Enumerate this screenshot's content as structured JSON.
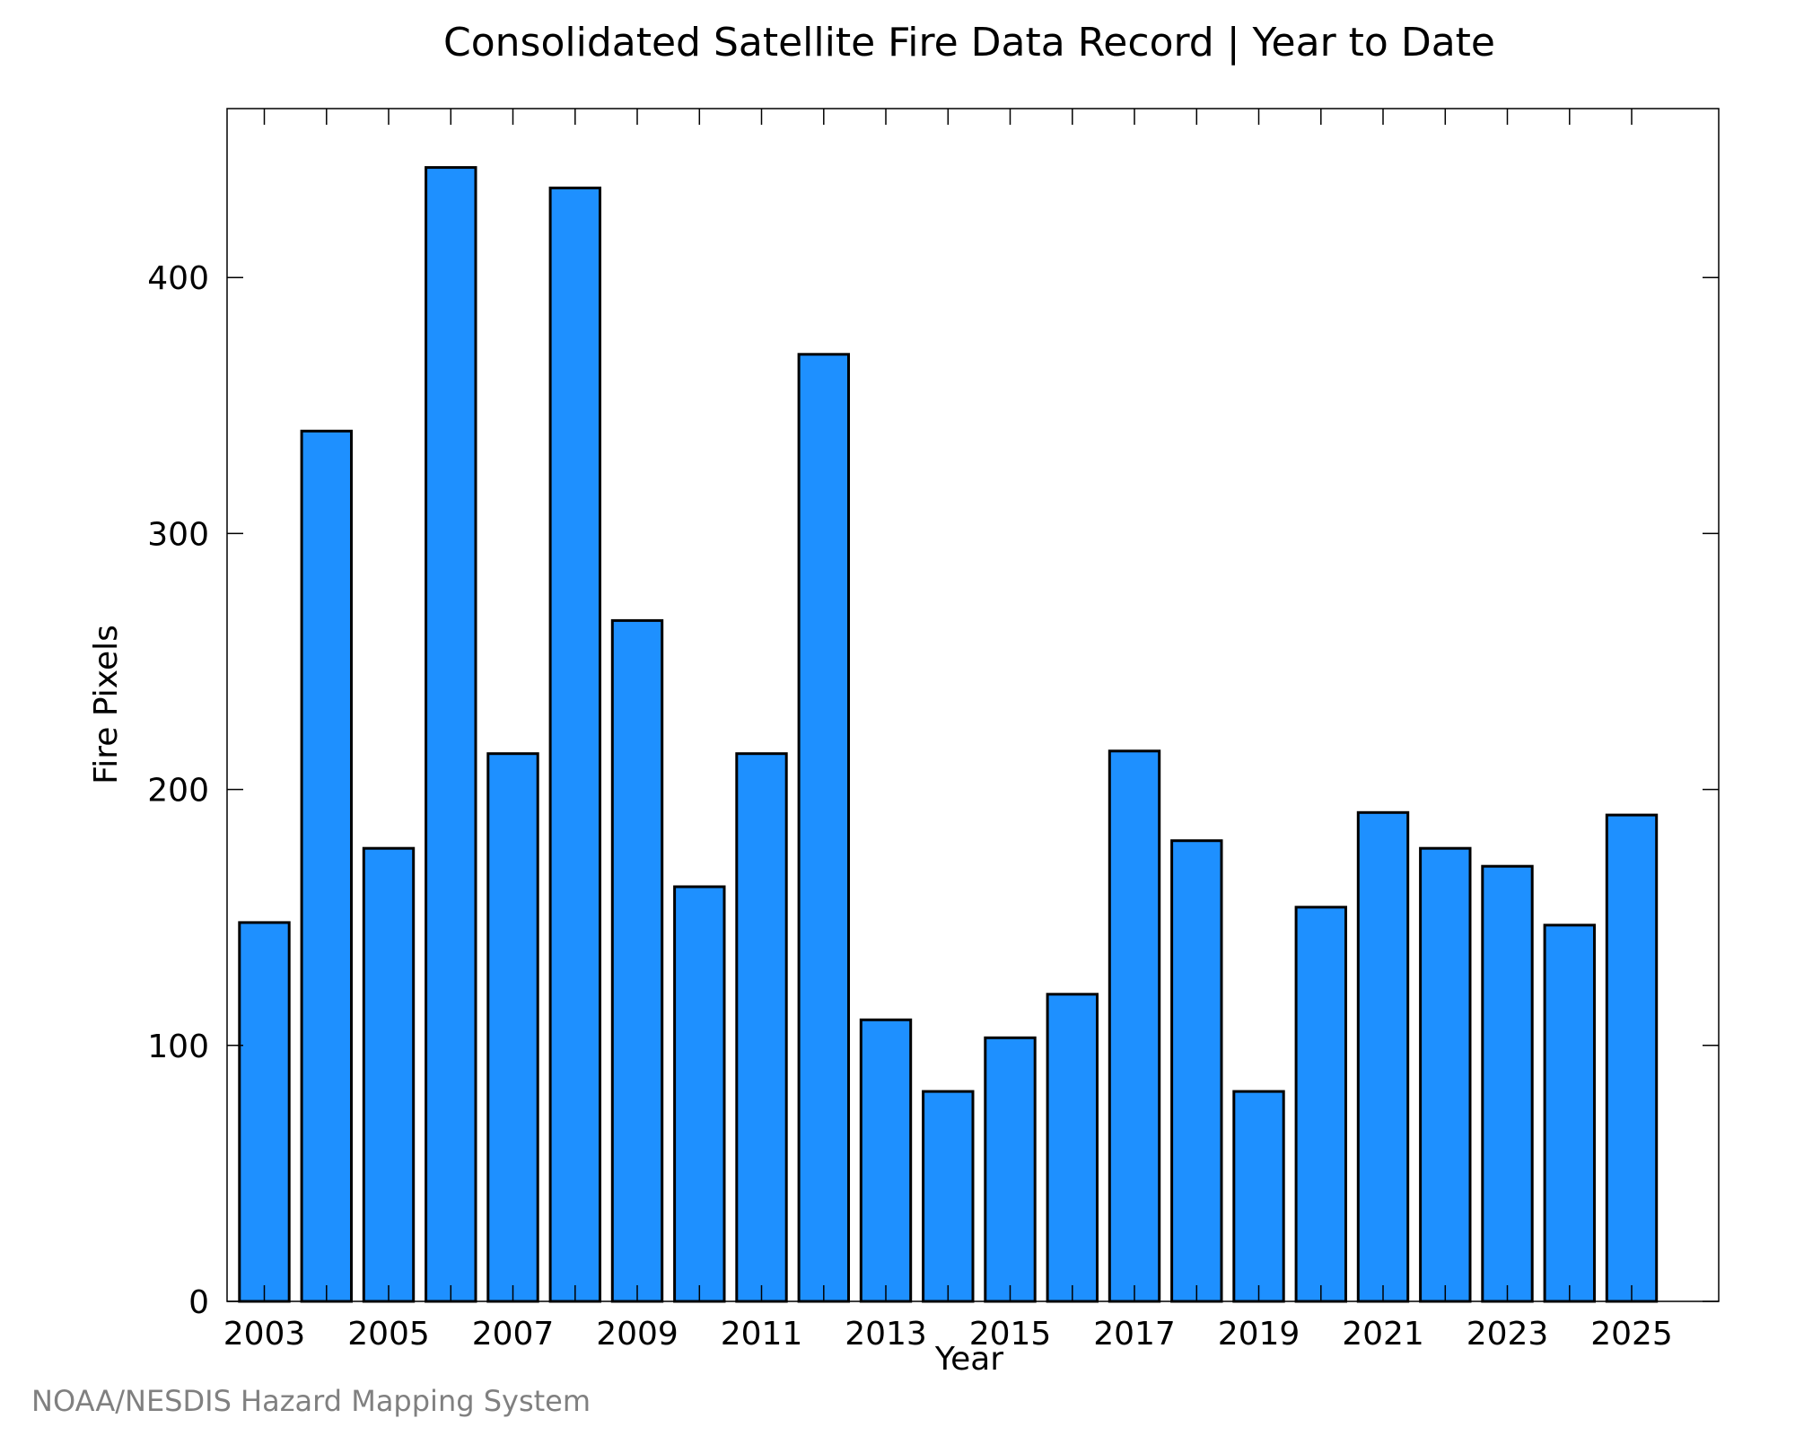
{
  "chart_data": {
    "type": "bar",
    "title": "Consolidated Satellite Fire Data Record | Year to Date",
    "xlabel": "Year",
    "ylabel": "Fire Pixels",
    "categories": [
      "2003",
      "2004",
      "2005",
      "2006",
      "2007",
      "2008",
      "2009",
      "2010",
      "2011",
      "2012",
      "2013",
      "2014",
      "2015",
      "2016",
      "2017",
      "2018",
      "2019",
      "2020",
      "2021",
      "2022",
      "2023",
      "2024",
      "2025"
    ],
    "values": [
      148,
      340,
      177,
      443,
      214,
      435,
      266,
      162,
      214,
      370,
      110,
      82,
      103,
      120,
      215,
      180,
      82,
      154,
      191,
      177,
      170,
      147,
      190
    ],
    "x_tick_labels": [
      "2003",
      "2005",
      "2007",
      "2009",
      "2011",
      "2013",
      "2015",
      "2017",
      "2019",
      "2021",
      "2023",
      "2025"
    ],
    "y_ticks": [
      0,
      100,
      200,
      300,
      400
    ],
    "ylim": [
      0,
      466
    ],
    "xlim": [
      2002.4,
      2026.4
    ],
    "grid": false,
    "legend": "none",
    "bar_color": "#1e90ff",
    "edge_color": "#000000"
  },
  "credit": {
    "text": "NOAA/NESDIS Hazard Mapping System",
    "color": "#808080"
  }
}
